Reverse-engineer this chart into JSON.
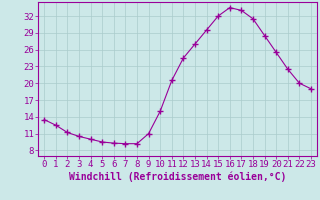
{
  "x": [
    0,
    1,
    2,
    3,
    4,
    5,
    6,
    7,
    8,
    9,
    10,
    11,
    12,
    13,
    14,
    15,
    16,
    17,
    18,
    19,
    20,
    21,
    22,
    23
  ],
  "y": [
    13.5,
    12.5,
    11.2,
    10.5,
    10.0,
    9.5,
    9.3,
    9.2,
    9.2,
    11.0,
    15.0,
    20.5,
    24.5,
    27.0,
    29.5,
    32.0,
    33.5,
    33.0,
    31.5,
    28.5,
    25.5,
    22.5,
    20.0,
    19.0
  ],
  "line_color": "#990099",
  "marker": "+",
  "bg_color": "#cce8e8",
  "grid_color": "#aacccc",
  "xlabel": "Windchill (Refroidissement éolien,°C)",
  "yticks": [
    8,
    11,
    14,
    17,
    20,
    23,
    26,
    29,
    32
  ],
  "xticks": [
    0,
    1,
    2,
    3,
    4,
    5,
    6,
    7,
    8,
    9,
    10,
    11,
    12,
    13,
    14,
    15,
    16,
    17,
    18,
    19,
    20,
    21,
    22,
    23
  ],
  "ylim": [
    7,
    34.5
  ],
  "xlim": [
    -0.5,
    23.5
  ],
  "text_color": "#990099",
  "axis_color": "#990099",
  "tick_font_size": 6.5,
  "label_font_size": 7
}
